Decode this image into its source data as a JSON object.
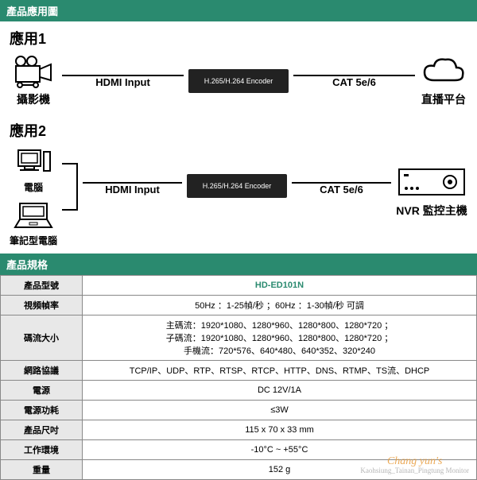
{
  "headers": {
    "diagram": "產品應用圖",
    "specs": "產品規格"
  },
  "app1": {
    "title": "應用1",
    "camera": "攝影機",
    "hdmi": "HDMI Input",
    "encoder": "H.265/H.264 Encoder",
    "cat": "CAT 5e/6",
    "cloud": "直播平台"
  },
  "app2": {
    "title": "應用2",
    "pc": "電腦",
    "laptop": "筆記型電腦",
    "hdmi": "HDMI Input",
    "encoder": "H.265/H.264 Encoder",
    "cat": "CAT 5e/6",
    "nvr": "NVR 監控主機"
  },
  "specs": {
    "rows": [
      {
        "k": "產品型號",
        "v": "HD-ED101N",
        "cls": "model"
      },
      {
        "k": "視頻幀率",
        "v": "50Hz ：1-25幀/秒 ；60Hz ：1-30幀/秒  可調"
      },
      {
        "k": "碼流大小",
        "v": "主碼流：1920*1080、1280*960、1280*800、1280*720 ；\n子碼流：1920*1080、1280*960、1280*800、1280*720 ；\n手機流：720*576、640*480、640*352、320*240"
      },
      {
        "k": "網路協議",
        "v": "TCP/IP、UDP、RTP、RTSP、RTCP、HTTP、DNS、RTMP、TS流、DHCP"
      },
      {
        "k": "電源",
        "v": "DC 12V/1A"
      },
      {
        "k": "電源功耗",
        "v": "≤3W"
      },
      {
        "k": "產品尺吋",
        "v": "115 x 70 x 33 mm"
      },
      {
        "k": "工作環境",
        "v": "-10°C ~ +55°C"
      },
      {
        "k": "重量",
        "v": "152 g"
      }
    ]
  },
  "watermark": {
    "main": "Chang yun's",
    "sub": "Kaohsiung_Tainan_Pingtung\nMonitor"
  },
  "colors": {
    "header": "#2a8a6f",
    "model": "#2a8a6f",
    "wm": "#e89c3c"
  }
}
